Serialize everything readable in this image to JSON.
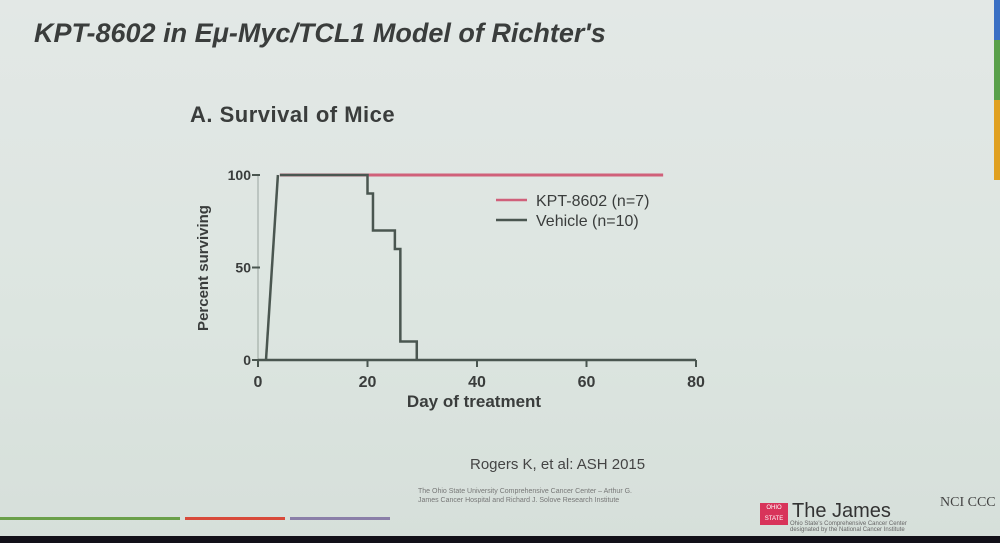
{
  "slide": {
    "title": "KPT-8602 in Eμ-Myc/TCL1 Model of Richter's",
    "subtitle": "A. Survival of Mice",
    "citation": "Rogers K, et al: ASH 2015",
    "footer_text": "The Ohio State University Comprehensive Cancer Center – Arthur G. James Cancer Hospital and Richard J. Solove Research Institute",
    "logo_name": "The James",
    "logo_tagline": "Ohio State's Comprehensive Cancer Center designated by the National Cancer Institute",
    "seal_text": "OHIO STATE",
    "nci_logo": "NCI CCC"
  },
  "chart_data": {
    "type": "line",
    "subtype": "kaplan-meier step",
    "title": "A. Survival of Mice",
    "xlabel": "Day of treatment",
    "ylabel": "Percent surviving",
    "xlim": [
      0,
      80
    ],
    "ylim": [
      0,
      100
    ],
    "xticks": [
      "0",
      "20",
      "40",
      "60",
      "80"
    ],
    "yticks": [
      "0",
      "50",
      "100"
    ],
    "legend_position": "top-right",
    "series": [
      {
        "name": "KPT-8602 (n=7)",
        "color": "#d0607a",
        "x": [
          0,
          74
        ],
        "y": [
          100,
          100
        ]
      },
      {
        "name": "Vehicle (n=10)",
        "color": "#4a5650",
        "x": [
          0,
          20,
          21,
          25,
          26,
          29,
          29
        ],
        "y": [
          100,
          90,
          70,
          60,
          10,
          0,
          0
        ]
      }
    ]
  }
}
